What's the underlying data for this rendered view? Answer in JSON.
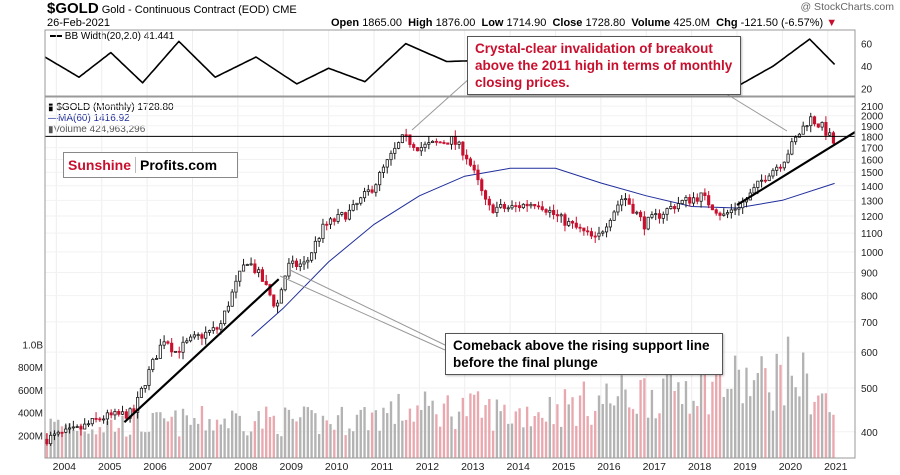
{
  "header": {
    "symbol": "$GOLD",
    "name": "Gold - Continuous Contract (EOD)",
    "exchange": "CME",
    "date": "26-Feb-2021",
    "open_label": "Open",
    "open": "1865.00",
    "high_label": "High",
    "high": "1876.00",
    "low_label": "Low",
    "low": "1714.90",
    "close_label": "Close",
    "close": "1728.80",
    "volume_label": "Volume",
    "volume": "425.0M",
    "chg_label": "Chg",
    "chg": "-121.50 (-6.57%)",
    "watermark": "@ StockCharts.com"
  },
  "legend": {
    "bb": "BB Width(20,2.0) 41.441",
    "price": "$GOLD (Monthly) 1728.80",
    "ma": "MA(60) 1416.92",
    "volume": "Volume 424,963,296"
  },
  "annotations": {
    "top": "Crystal-clear invalidation of breakout above the 2011 high in terms of monthly closing prices.",
    "bottom": "Comeback above the rising support line before the final plunge"
  },
  "logo": {
    "part1": "Sunshine",
    "part2": "Profits.com"
  },
  "colors": {
    "up": "#1a1a1a",
    "down": "#c8102e",
    "ma": "#1f2d9b",
    "annotation_text": "#c8102e",
    "vol_up": "#b3b3b3",
    "vol_down": "#e9a7ae"
  },
  "chart_data": {
    "type": "candlestick",
    "title": "$GOLD Gold - Continuous Contract (EOD) CME",
    "interval": "monthly",
    "y_scale": "log",
    "ylim": [
      350,
      2200
    ],
    "y_ticks": [
      400,
      500,
      600,
      700,
      800,
      900,
      1000,
      1100,
      1200,
      1300,
      1400,
      1500,
      1600,
      1700,
      1800,
      1900,
      2000,
      2100
    ],
    "x_ticks": [
      "2004",
      "2005",
      "2006",
      "2007",
      "2008",
      "2009",
      "2010",
      "2011",
      "2012",
      "2013",
      "2014",
      "2015",
      "2016",
      "2017",
      "2018",
      "2019",
      "2020",
      "2021"
    ],
    "horizontal_line": 1800,
    "price_anchors": [
      {
        "x": 2003.75,
        "y": 385
      },
      {
        "x": 2004.5,
        "y": 405
      },
      {
        "x": 2005.0,
        "y": 430
      },
      {
        "x": 2005.7,
        "y": 440
      },
      {
        "x": 2006.4,
        "y": 650
      },
      {
        "x": 2006.6,
        "y": 600
      },
      {
        "x": 2007.0,
        "y": 640
      },
      {
        "x": 2007.6,
        "y": 680
      },
      {
        "x": 2008.2,
        "y": 960
      },
      {
        "x": 2008.5,
        "y": 880
      },
      {
        "x": 2008.85,
        "y": 750
      },
      {
        "x": 2009.1,
        "y": 930
      },
      {
        "x": 2009.5,
        "y": 940
      },
      {
        "x": 2009.9,
        "y": 1140
      },
      {
        "x": 2010.5,
        "y": 1230
      },
      {
        "x": 2011.0,
        "y": 1400
      },
      {
        "x": 2011.65,
        "y": 1790
      },
      {
        "x": 2012.0,
        "y": 1700
      },
      {
        "x": 2012.7,
        "y": 1770
      },
      {
        "x": 2013.0,
        "y": 1660
      },
      {
        "x": 2013.5,
        "y": 1250
      },
      {
        "x": 2014.0,
        "y": 1250
      },
      {
        "x": 2014.6,
        "y": 1290
      },
      {
        "x": 2015.0,
        "y": 1200
      },
      {
        "x": 2015.9,
        "y": 1060
      },
      {
        "x": 2016.5,
        "y": 1330
      },
      {
        "x": 2016.95,
        "y": 1150
      },
      {
        "x": 2017.7,
        "y": 1280
      },
      {
        "x": 2018.2,
        "y": 1330
      },
      {
        "x": 2018.7,
        "y": 1200
      },
      {
        "x": 2019.2,
        "y": 1300
      },
      {
        "x": 2019.7,
        "y": 1500
      },
      {
        "x": 2020.0,
        "y": 1580
      },
      {
        "x": 2020.6,
        "y": 1980
      },
      {
        "x": 2020.9,
        "y": 1880
      },
      {
        "x": 2021.15,
        "y": 1729
      }
    ],
    "ma60_anchors": [
      {
        "x": 2008.3,
        "y": 650
      },
      {
        "x": 2009.0,
        "y": 750
      },
      {
        "x": 2010.0,
        "y": 950
      },
      {
        "x": 2011.0,
        "y": 1150
      },
      {
        "x": 2012.0,
        "y": 1330
      },
      {
        "x": 2013.0,
        "y": 1470
      },
      {
        "x": 2014.0,
        "y": 1530
      },
      {
        "x": 2015.0,
        "y": 1530
      },
      {
        "x": 2016.0,
        "y": 1420
      },
      {
        "x": 2017.0,
        "y": 1330
      },
      {
        "x": 2018.0,
        "y": 1260
      },
      {
        "x": 2019.0,
        "y": 1250
      },
      {
        "x": 2020.0,
        "y": 1300
      },
      {
        "x": 2021.15,
        "y": 1417
      }
    ],
    "trendlines": [
      {
        "from": {
          "x": 2005.5,
          "y": 420
        },
        "to": {
          "x": 2008.9,
          "y": 870
        }
      },
      {
        "from": {
          "x": 2019.0,
          "y": 1270
        },
        "to": {
          "x": 2021.6,
          "y": 1840
        }
      }
    ],
    "bb_width": {
      "y_ticks": [
        20,
        40,
        60
      ],
      "anchors": [
        {
          "x": 2003.75,
          "y": 48
        },
        {
          "x": 2004.5,
          "y": 30
        },
        {
          "x": 2005.2,
          "y": 52
        },
        {
          "x": 2005.9,
          "y": 25
        },
        {
          "x": 2006.7,
          "y": 62
        },
        {
          "x": 2007.5,
          "y": 30
        },
        {
          "x": 2008.4,
          "y": 48
        },
        {
          "x": 2009.3,
          "y": 24
        },
        {
          "x": 2010.0,
          "y": 38
        },
        {
          "x": 2010.8,
          "y": 26
        },
        {
          "x": 2011.7,
          "y": 60
        },
        {
          "x": 2012.6,
          "y": 44
        },
        {
          "x": 2013.4,
          "y": 45
        },
        {
          "x": 2014.4,
          "y": 26
        },
        {
          "x": 2015.3,
          "y": 30
        },
        {
          "x": 2016.0,
          "y": 28
        },
        {
          "x": 2016.6,
          "y": 38
        },
        {
          "x": 2017.5,
          "y": 22
        },
        {
          "x": 2018.3,
          "y": 22
        },
        {
          "x": 2019.1,
          "y": 24
        },
        {
          "x": 2019.8,
          "y": 40
        },
        {
          "x": 2020.6,
          "y": 64
        },
        {
          "x": 2021.15,
          "y": 41.4
        }
      ]
    },
    "volume": {
      "y_ticks": [
        "200M",
        "400M",
        "600M",
        "800M",
        "1.0B"
      ],
      "ylim": [
        0,
        1100
      ],
      "anchors": [
        {
          "x": 2003.75,
          "y": 300
        },
        {
          "x": 2006.0,
          "y": 310
        },
        {
          "x": 2008.0,
          "y": 360
        },
        {
          "x": 2010.0,
          "y": 330
        },
        {
          "x": 2011.5,
          "y": 430
        },
        {
          "x": 2013.0,
          "y": 460
        },
        {
          "x": 2014.0,
          "y": 400
        },
        {
          "x": 2016.5,
          "y": 560
        },
        {
          "x": 2018.0,
          "y": 700
        },
        {
          "x": 2019.5,
          "y": 690
        },
        {
          "x": 2020.2,
          "y": 820
        },
        {
          "x": 2021.15,
          "y": 425
        }
      ]
    }
  }
}
